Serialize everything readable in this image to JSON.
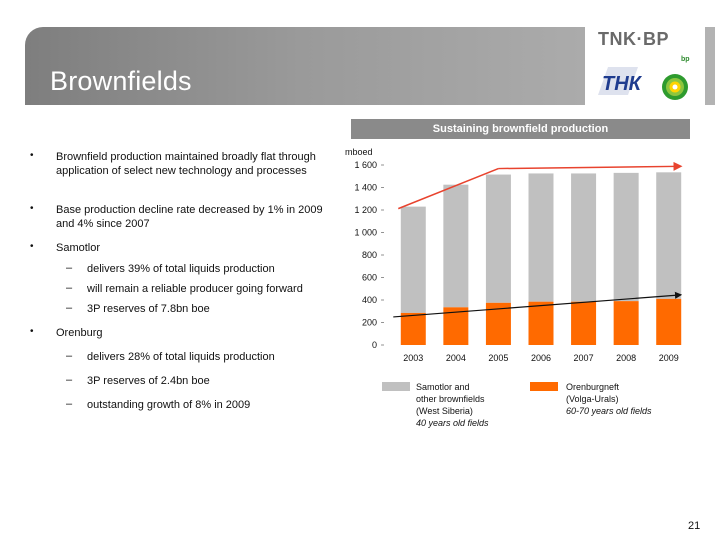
{
  "header": {
    "title": "Brownfields",
    "logo_text": "TNK·BP",
    "logo_sub": "bp"
  },
  "bullets": [
    {
      "text": "Brownfield production maintained broadly flat through application of select new technology and processes"
    },
    {
      "text": "Base production decline rate decreased by 1% in 2009 and 4% since 2007"
    },
    {
      "text": "Samotlor",
      "sub": [
        "delivers 39% of total liquids production",
        "will remain a reliable producer going forward",
        "3P reserves of 7.8bn boe"
      ]
    },
    {
      "text": "Orenburg",
      "sub": [
        "delivers 28% of total liquids production",
        "3P reserves of 2.4bn boe",
        "outstanding growth of 8% in 2009"
      ]
    }
  ],
  "bullet_mark": "•",
  "dash_mark": "–",
  "chart_header": "Sustaining brownfield production",
  "colors": {
    "gray": "#c0c0c0",
    "orange": "#ff6a00",
    "red_line": "#e8432e",
    "black_line": "#111111"
  },
  "chart_data": {
    "type": "bar",
    "stacked": true,
    "ylabel": "mboed",
    "ylim": [
      0,
      1600
    ],
    "yticks": [
      "0",
      "200",
      "400",
      "600",
      "800",
      "1 000",
      "1 200",
      "1 400",
      "1 600"
    ],
    "categories": [
      "2003",
      "2004",
      "2005",
      "2006",
      "2007",
      "2008",
      "2009"
    ],
    "series": [
      {
        "name": "Orenburgneft (Volga-Urals) 60-70 years old fields",
        "color": "#ff6a00",
        "values": [
          285,
          335,
          375,
          385,
          385,
          390,
          410
        ]
      },
      {
        "name": "Samotlor and other brownfields (West Siberia) 40 years old fields",
        "color": "#c0c0c0",
        "values": [
          945,
          1090,
          1140,
          1140,
          1140,
          1140,
          1125
        ]
      }
    ]
  },
  "legend": {
    "gray": {
      "l1": "Samotlor and",
      "l2": "other brownfields",
      "l3": "(West Siberia)",
      "l4": "40 years old fields"
    },
    "orange": {
      "l1": "Orenburgneft",
      "l2": "(Volga-Urals)",
      "l3": "60-70 years old fields"
    }
  },
  "page_number": "21"
}
